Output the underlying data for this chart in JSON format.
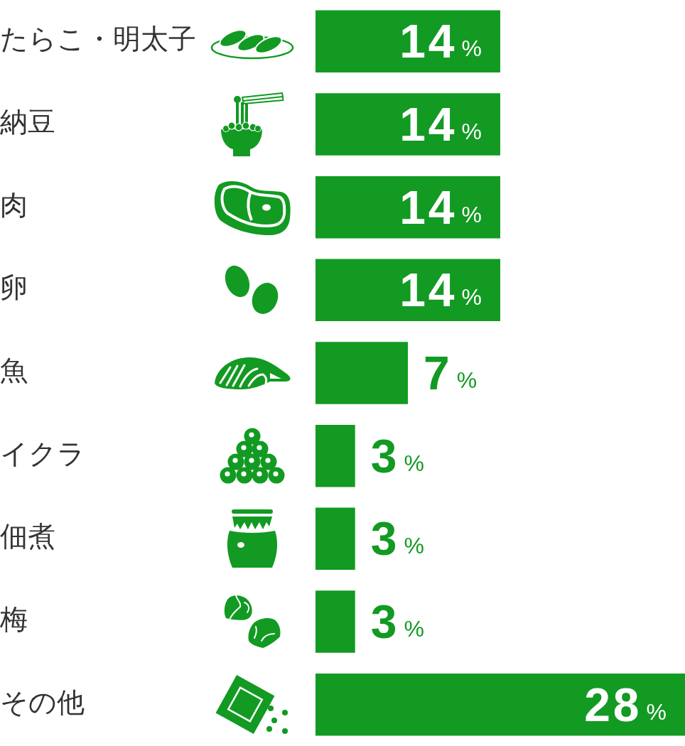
{
  "chart_data": {
    "type": "bar",
    "orientation": "horizontal",
    "categories": [
      "たらこ・明太子",
      "納豆",
      "肉",
      "卵",
      "魚",
      "イクラ",
      "佃煮",
      "梅",
      "その他"
    ],
    "values": [
      14,
      14,
      14,
      14,
      7,
      3,
      3,
      3,
      28
    ],
    "color": "#129a22",
    "value_labels": [
      "14%",
      "14%",
      "14%",
      "14%",
      "7%",
      "3%",
      "3%",
      "3%",
      "28%"
    ],
    "tick_labels": "y"
  }
}
